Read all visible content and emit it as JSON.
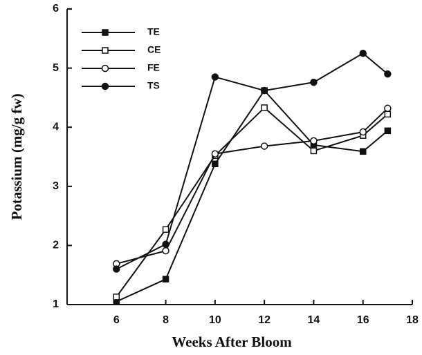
{
  "chart_data": {
    "type": "line",
    "x_label": "Weeks After Bloom",
    "y_label": "Potassium (mg/g fw)",
    "x": [
      6,
      8,
      10,
      12,
      14,
      16,
      17
    ],
    "series": [
      {
        "name": "TE",
        "color": "#111111",
        "marker": "square",
        "filled": true,
        "values": [
          1.05,
          1.43,
          3.38,
          4.62,
          3.7,
          3.59,
          3.94
        ]
      },
      {
        "name": "CE",
        "color": "#111111",
        "marker": "square",
        "filled": false,
        "values": [
          1.13,
          2.27,
          3.52,
          4.33,
          3.6,
          3.86,
          4.22
        ]
      },
      {
        "name": "FE",
        "color": "#111111",
        "marker": "circle",
        "filled": false,
        "values": [
          1.69,
          1.91,
          3.55,
          3.68,
          3.77,
          3.92,
          4.32
        ]
      },
      {
        "name": "TS",
        "color": "#111111",
        "marker": "circle",
        "filled": true,
        "values": [
          1.6,
          2.02,
          4.85,
          4.62,
          4.76,
          5.25,
          4.9
        ]
      }
    ],
    "xlim": [
      4,
      18
    ],
    "xticks": [
      6,
      8,
      10,
      12,
      14,
      16,
      18
    ],
    "ylim": [
      1,
      6
    ],
    "yticks": [
      1,
      2,
      3,
      4,
      5,
      6
    ],
    "legend": "upper left"
  }
}
